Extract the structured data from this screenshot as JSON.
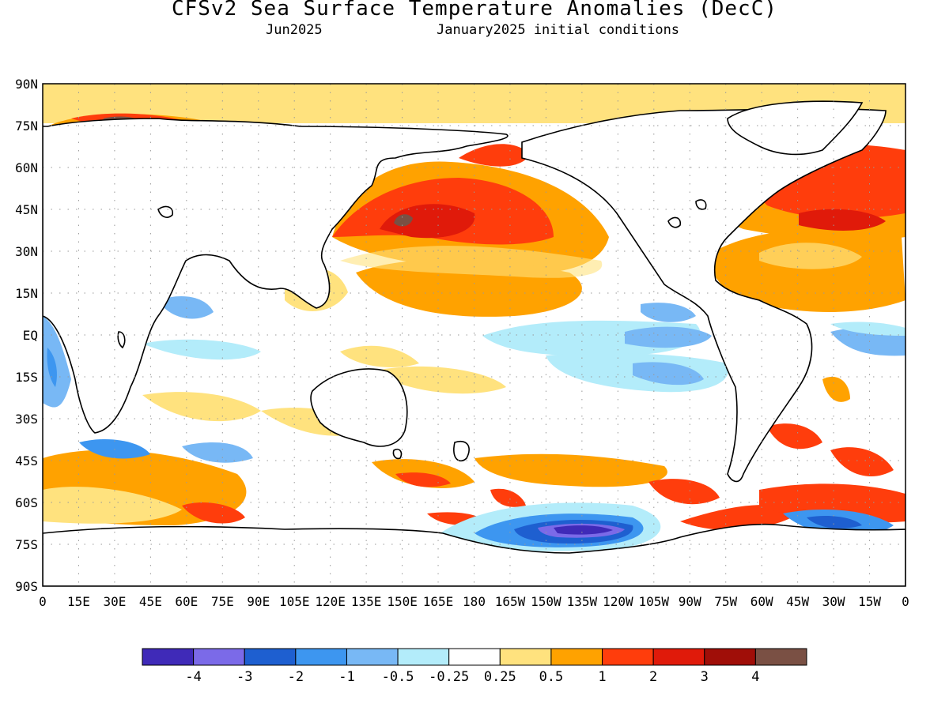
{
  "title": "CFSv2 Sea Surface Temperature Anomalies (DecC)",
  "subtitle_left": "Jun2025",
  "subtitle_right": "January2025 initial conditions",
  "lat_labels": [
    "90N",
    "75N",
    "60N",
    "45N",
    "30N",
    "15N",
    "EQ",
    "15S",
    "30S",
    "45S",
    "60S",
    "75S",
    "90S"
  ],
  "lon_labels": [
    "0",
    "15E",
    "30E",
    "45E",
    "60E",
    "75E",
    "90E",
    "105E",
    "120E",
    "135E",
    "150E",
    "165E",
    "180",
    "165W",
    "150W",
    "135W",
    "120W",
    "105W",
    "90W",
    "75W",
    "60W",
    "45W",
    "30W",
    "15W",
    "0"
  ],
  "colorbar": {
    "colors": [
      "#3f2ab8",
      "#7b6ae8",
      "#1e5fd0",
      "#3d96f0",
      "#78b8f5",
      "#b3ecfa",
      "#ffffff",
      "#ffe27e",
      "#ffa200",
      "#ff3d0c",
      "#e01a0a",
      "#a00e08",
      "#7a5044"
    ],
    "labels": [
      "-4",
      "-3",
      "-2",
      "-1",
      "-0.5",
      "-0.25",
      "0.25",
      "0.5",
      "1",
      "2",
      "3",
      "4"
    ]
  },
  "colors": {
    "land": "#ffffff",
    "coast": "#000000",
    "grid": "#999999"
  }
}
